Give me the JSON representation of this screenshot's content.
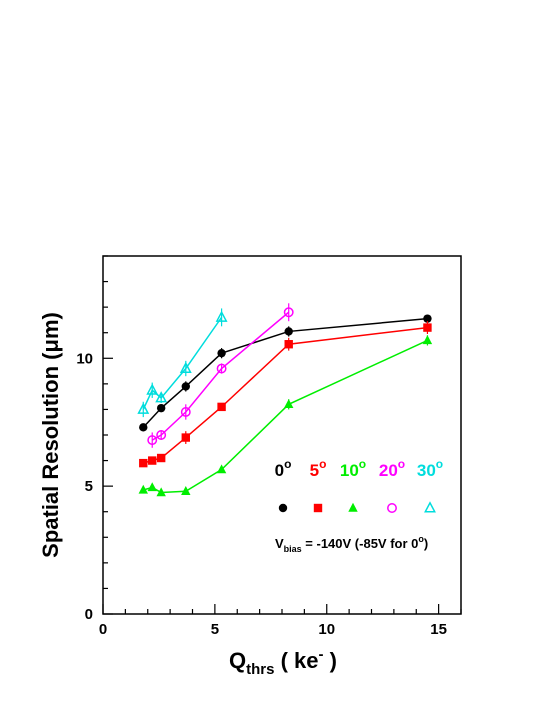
{
  "chart_data": {
    "type": "line",
    "xlabel": {
      "main": "Q",
      "sub": "thrs",
      "rest": " ( ke",
      "sup": "-",
      "end": " )"
    },
    "ylabel": {
      "main": "Spatial Resolution (",
      "greek": "μ",
      "end": "m)"
    },
    "xlim": [
      0,
      16
    ],
    "ylim": [
      0,
      14
    ],
    "xticks": [
      0,
      5,
      10,
      15
    ],
    "yticks": [
      0,
      5,
      10
    ],
    "grid": false,
    "legend_placement": "inside-right",
    "annotation": {
      "main": "V",
      "sub": "bias",
      "rest": " = -140V (-85V for 0",
      "sup": "o",
      "end": ")"
    },
    "series": [
      {
        "name": "0",
        "sup": "o",
        "color": "#000000",
        "marker": "filled-circle",
        "x": [
          1.8,
          2.6,
          3.7,
          5.3,
          8.3,
          14.5
        ],
        "y": [
          7.3,
          8.05,
          8.9,
          10.2,
          11.05,
          11.55
        ],
        "err": [
          0.15,
          0.15,
          0.2,
          0.2,
          0.2,
          0.15
        ]
      },
      {
        "name": "5",
        "sup": "o",
        "color": "#ff0000",
        "marker": "filled-square",
        "x": [
          1.8,
          2.2,
          2.6,
          3.7,
          5.3,
          8.3,
          14.5
        ],
        "y": [
          5.9,
          6.0,
          6.1,
          6.9,
          8.1,
          10.55,
          11.2
        ],
        "err": [
          0.12,
          0.15,
          0.12,
          0.25,
          0.15,
          0.25,
          0.25
        ]
      },
      {
        "name": "10",
        "sup": "o",
        "color": "#00ee00",
        "marker": "filled-triangle",
        "x": [
          1.8,
          2.2,
          2.6,
          3.7,
          5.3,
          8.3,
          14.5
        ],
        "y": [
          4.85,
          4.95,
          4.75,
          4.8,
          5.65,
          8.2,
          10.7
        ],
        "err": [
          0.1,
          0.1,
          0.1,
          0.1,
          0.1,
          0.2,
          0.2
        ]
      },
      {
        "name": "20",
        "sup": "o",
        "color": "#ff00ff",
        "marker": "open-circle",
        "x": [
          2.2,
          2.6,
          3.7,
          5.3,
          8.3
        ],
        "y": [
          6.8,
          7.0,
          7.9,
          9.6,
          11.8
        ],
        "err": [
          0.3,
          0.15,
          0.3,
          0.2,
          0.35
        ]
      },
      {
        "name": "30",
        "sup": "o",
        "color": "#00dddd",
        "marker": "open-triangle",
        "x": [
          1.8,
          2.2,
          2.6,
          3.7,
          5.3
        ],
        "y": [
          8.0,
          8.75,
          8.45,
          9.6,
          11.6
        ],
        "err": [
          0.3,
          0.3,
          0.2,
          0.3,
          0.35
        ]
      }
    ]
  }
}
